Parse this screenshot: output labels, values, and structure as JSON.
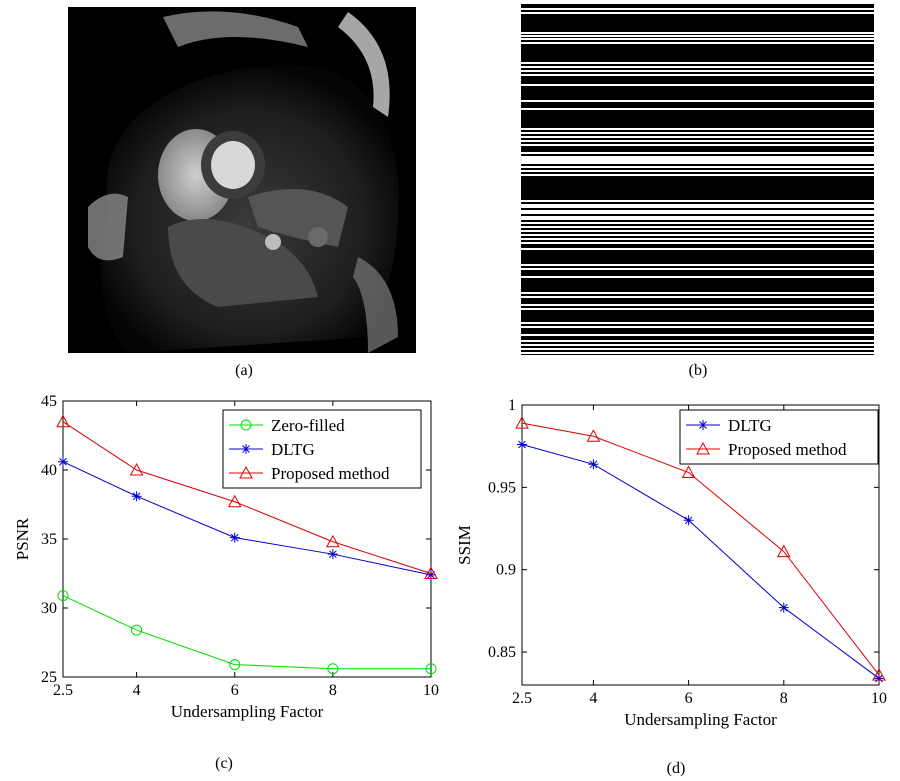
{
  "captions": {
    "a": "(a)",
    "b": "(b)",
    "c": "(c)",
    "d": "(d)"
  },
  "images": {
    "a": {
      "name": "cardiac-mri-image"
    },
    "b": {
      "name": "undersampling-mask-image"
    }
  },
  "chart_data": [
    {
      "type": "line",
      "title": "",
      "xlabel": "Undersampling Factor",
      "ylabel": "PSNR",
      "categories": [
        "2.5",
        "4",
        "6",
        "8",
        "10"
      ],
      "x": [
        2.5,
        4,
        6,
        8,
        10
      ],
      "xlim": [
        2.5,
        10
      ],
      "ylim": [
        25,
        45
      ],
      "xticks": [
        "2.5",
        "4",
        "6",
        "8",
        "10"
      ],
      "yticks": [
        "25",
        "30",
        "35",
        "40",
        "45"
      ],
      "ytick_values": [
        25,
        30,
        35,
        40,
        45
      ],
      "legend_position": "top-right",
      "series": [
        {
          "name": "Zero-filled",
          "color": "#00dd00",
          "marker": "circle",
          "values": [
            30.9,
            28.4,
            25.9,
            25.6,
            25.6
          ]
        },
        {
          "name": "DLTG",
          "color": "#0000cc",
          "marker": "star",
          "values": [
            40.6,
            38.1,
            35.1,
            33.9,
            32.4
          ]
        },
        {
          "name": "Proposed method",
          "color": "#dd0000",
          "marker": "triangle",
          "values": [
            43.5,
            40.0,
            37.7,
            34.8,
            32.5
          ]
        }
      ]
    },
    {
      "type": "line",
      "title": "",
      "xlabel": "Undersampling Factor",
      "ylabel": "SSIM",
      "categories": [
        "2.5",
        "4",
        "6",
        "8",
        "10"
      ],
      "x": [
        2.5,
        4,
        6,
        8,
        10
      ],
      "xlim": [
        2.5,
        10
      ],
      "ylim": [
        0.83,
        1.0
      ],
      "xticks": [
        "2.5",
        "4",
        "6",
        "8",
        "10"
      ],
      "yticks": [
        "0.85",
        "0.9",
        "0.95",
        "1"
      ],
      "ytick_values": [
        0.85,
        0.9,
        0.95,
        1.0
      ],
      "legend_position": "top-right",
      "series": [
        {
          "name": "DLTG",
          "color": "#0000cc",
          "marker": "star",
          "values": [
            0.976,
            0.964,
            0.93,
            0.877,
            0.834
          ]
        },
        {
          "name": "Proposed method",
          "color": "#dd0000",
          "marker": "triangle",
          "values": [
            0.989,
            0.981,
            0.959,
            0.911,
            0.836
          ]
        }
      ]
    }
  ]
}
